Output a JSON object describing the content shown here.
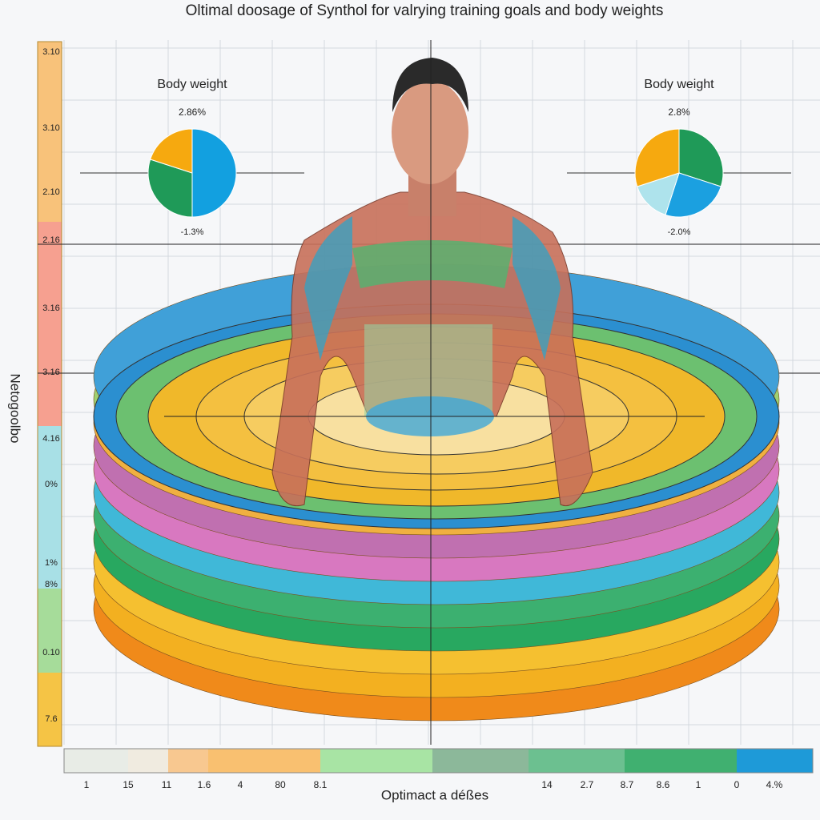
{
  "header": {
    "title": "Oltimal doosage of Synthol for valrying training goals and body weights"
  },
  "left_scale": {
    "axis_label": "Netogoolbo",
    "labels": [
      "3.10",
      "3.10",
      "2.10",
      "2.16",
      "3.16",
      "3.16",
      "4.16",
      "0%",
      "1%",
      "8%",
      "0.10",
      "7.6"
    ]
  },
  "bottom_scale": {
    "axis_label": "Optimact a déßes",
    "labels": [
      "1",
      "15",
      "11",
      "1.6",
      "4",
      "80",
      "8.1",
      "14",
      "2.7",
      "8.7",
      "8.6",
      "1",
      "0",
      "4.%"
    ]
  },
  "pies": [
    {
      "title": "Body weight",
      "top_label": "2.86%",
      "bottom_label": "-1.3%",
      "slices": [
        {
          "color": "#12a0e0",
          "value": 50
        },
        {
          "color": "#1f9a58",
          "value": 30
        },
        {
          "color": "#f6a90f",
          "value": 20
        }
      ]
    },
    {
      "title": "Body weight",
      "top_label": "2.8%",
      "bottom_label": "-2.0%",
      "slices": [
        {
          "color": "#1f9a58",
          "value": 30
        },
        {
          "color": "#1ba0e0",
          "value": 25
        },
        {
          "color": "#aee3ec",
          "value": 15
        },
        {
          "color": "#f6a90f",
          "value": 30
        }
      ]
    }
  ]
}
